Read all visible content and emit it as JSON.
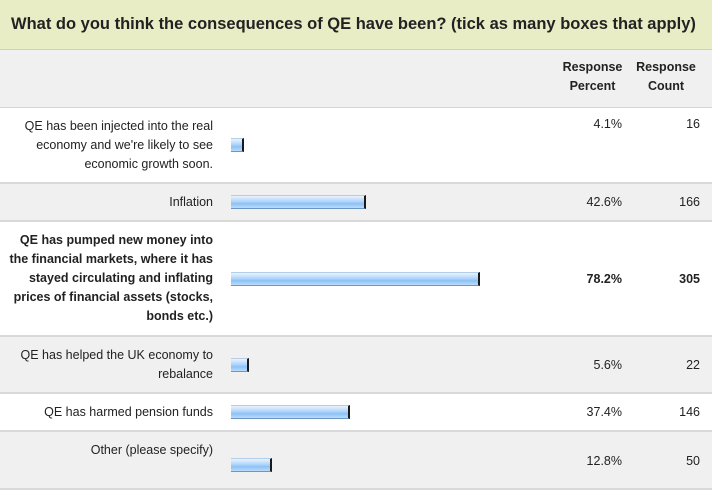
{
  "question": "What do you think the consequences of QE have been? (tick as many boxes that apply)",
  "columns": {
    "percent": "Response Percent",
    "count": "Response Count"
  },
  "rows": [
    {
      "label": "QE has been injected into the real economy and we're likely to see economic growth soon.",
      "percent": "4.1%",
      "count": "16",
      "value": 4.1
    },
    {
      "label": "Inflation",
      "percent": "42.6%",
      "count": "166",
      "value": 42.6
    },
    {
      "label": "QE has pumped new money into the financial markets, where it has stayed circulating and inflating prices of financial assets (stocks, bonds etc.)",
      "percent": "78.2%",
      "count": "305",
      "value": 78.2
    },
    {
      "label": "QE has helped the UK economy to rebalance",
      "percent": "5.6%",
      "count": "22",
      "value": 5.6
    },
    {
      "label": "QE has harmed pension funds",
      "percent": "37.4%",
      "count": "146",
      "value": 37.4
    },
    {
      "label": "Other (please specify)",
      "percent": "12.8%",
      "count": "50",
      "value": 12.8
    }
  ],
  "colors": {
    "header_bg": "#e8edc5",
    "row_alt_bg": "#f0f0f0",
    "bar_fill": "#8cc2f5"
  }
}
